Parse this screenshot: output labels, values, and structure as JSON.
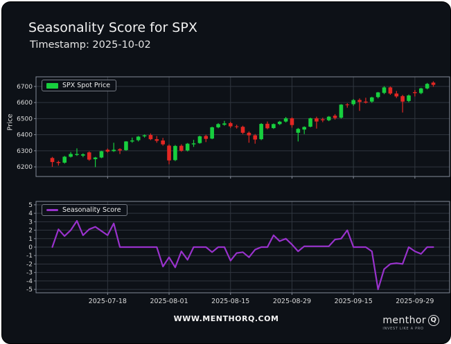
{
  "header": {
    "title": "Seasonality Score for SPX",
    "timestamp": "Timestamp: 2025-10-02"
  },
  "footer": {
    "website": "WWW.MENTHORQ.COM",
    "logo_text": "menthor",
    "logo_q": "Q",
    "logo_tagline": "INVEST LIKE A PRO"
  },
  "colors": {
    "background": "#0d1117",
    "up": "#17cf3e",
    "down": "#e32723",
    "score_line": "#9932cc",
    "grid": "#30363f",
    "spine": "#848b98",
    "tick_text": "#dcdcdc",
    "text": "#f2f2f2"
  },
  "chart_data": [
    {
      "type": "candlestick",
      "legend": "SPX Spot Price",
      "ylabel": "Price",
      "ylim": [
        6140,
        6760
      ],
      "yticks": [
        6200,
        6300,
        6400,
        6500,
        6600,
        6700
      ],
      "xticks": [
        "2025-07-18",
        "2025-08-01",
        "2025-08-15",
        "2025-08-29",
        "2025-09-15",
        "2025-09-29"
      ],
      "xtick_indices": [
        9,
        19,
        29,
        39,
        49,
        59
      ],
      "grid": true,
      "legend_position": "upper-left",
      "dates": [
        "2025-07-07",
        "2025-07-08",
        "2025-07-09",
        "2025-07-10",
        "2025-07-11",
        "2025-07-14",
        "2025-07-15",
        "2025-07-16",
        "2025-07-17",
        "2025-07-18",
        "2025-07-21",
        "2025-07-22",
        "2025-07-23",
        "2025-07-24",
        "2025-07-25",
        "2025-07-28",
        "2025-07-29",
        "2025-07-30",
        "2025-07-31",
        "2025-08-01",
        "2025-08-04",
        "2025-08-05",
        "2025-08-06",
        "2025-08-07",
        "2025-08-08",
        "2025-08-11",
        "2025-08-12",
        "2025-08-13",
        "2025-08-14",
        "2025-08-15",
        "2025-08-18",
        "2025-08-19",
        "2025-08-20",
        "2025-08-21",
        "2025-08-22",
        "2025-08-25",
        "2025-08-26",
        "2025-08-27",
        "2025-08-28",
        "2025-08-29",
        "2025-09-02",
        "2025-09-03",
        "2025-09-04",
        "2025-09-05",
        "2025-09-08",
        "2025-09-09",
        "2025-09-10",
        "2025-09-11",
        "2025-09-12",
        "2025-09-15",
        "2025-09-16",
        "2025-09-17",
        "2025-09-18",
        "2025-09-19",
        "2025-09-22",
        "2025-09-23",
        "2025-09-24",
        "2025-09-25",
        "2025-09-26",
        "2025-09-29",
        "2025-09-30",
        "2025-10-01",
        "2025-10-02"
      ],
      "open": [
        6255,
        6230,
        6226,
        6263,
        6274,
        6270,
        6290,
        6248,
        6258,
        6306,
        6298,
        6310,
        6304,
        6358,
        6366,
        6390,
        6398,
        6372,
        6364,
        6332,
        6242,
        6331,
        6302,
        6340,
        6348,
        6392,
        6376,
        6446,
        6462,
        6472,
        6452,
        6449,
        6412,
        6396,
        6372,
        6468,
        6441,
        6466,
        6482,
        6502,
        6412,
        6432,
        6450,
        6502,
        6496,
        6490,
        6518,
        6506,
        6588,
        6590,
        6616,
        6606,
        6606,
        6634,
        6660,
        6694,
        6656,
        6640,
        6610,
        6665,
        6659,
        6688,
        6724
      ],
      "high": [
        6262,
        6238,
        6268,
        6292,
        6315,
        6284,
        6296,
        6262,
        6300,
        6314,
        6350,
        6316,
        6360,
        6382,
        6392,
        6402,
        6408,
        6392,
        6380,
        6340,
        6336,
        6340,
        6348,
        6368,
        6394,
        6400,
        6450,
        6472,
        6486,
        6480,
        6462,
        6456,
        6420,
        6404,
        6472,
        6482,
        6470,
        6486,
        6510,
        6508,
        6442,
        6452,
        6506,
        6512,
        6506,
        6516,
        6528,
        6590,
        6596,
        6622,
        6626,
        6630,
        6636,
        6666,
        6702,
        6700,
        6672,
        6648,
        6650,
        6678,
        6692,
        6722,
        6732
      ],
      "low": [
        6200,
        6208,
        6220,
        6258,
        6268,
        6260,
        6238,
        6198,
        6254,
        6288,
        6293,
        6280,
        6300,
        6350,
        6358,
        6382,
        6366,
        6350,
        6332,
        6216,
        6236,
        6294,
        6296,
        6324,
        6344,
        6354,
        6372,
        6440,
        6456,
        6442,
        6438,
        6404,
        6350,
        6344,
        6366,
        6434,
        6436,
        6460,
        6476,
        6444,
        6358,
        6404,
        6446,
        6438,
        6478,
        6484,
        6494,
        6500,
        6568,
        6580,
        6548,
        6594,
        6598,
        6626,
        6652,
        6648,
        6628,
        6538,
        6602,
        6638,
        6652,
        6682,
        6698
      ],
      "close": [
        6230,
        6224,
        6263,
        6280,
        6280,
        6278,
        6245,
        6258,
        6297,
        6295,
        6306,
        6302,
        6358,
        6364,
        6388,
        6396,
        6372,
        6362,
        6340,
        6240,
        6330,
        6300,
        6344,
        6346,
        6390,
        6374,
        6446,
        6466,
        6470,
        6452,
        6448,
        6412,
        6396,
        6370,
        6467,
        6440,
        6466,
        6481,
        6502,
        6460,
        6436,
        6448,
        6502,
        6482,
        6490,
        6512,
        6504,
        6587,
        6584,
        6615,
        6604,
        6600,
        6632,
        6663,
        6694,
        6656,
        6638,
        6606,
        6644,
        6659,
        6688,
        6716,
        6710
      ]
    },
    {
      "type": "line",
      "legend": "Seasonality Score",
      "ylim": [
        -5.4,
        5.4
      ],
      "yticks": [
        5,
        4,
        3,
        2,
        1,
        0,
        -1,
        -2,
        -3,
        -4,
        -5
      ],
      "xticks": [
        "2025-07-18",
        "2025-08-01",
        "2025-08-15",
        "2025-08-29",
        "2025-09-15",
        "2025-09-29"
      ],
      "xtick_indices": [
        9,
        19,
        29,
        39,
        49,
        59
      ],
      "grid": true,
      "legend_position": "upper-left",
      "values": [
        0.0,
        2.1,
        1.3,
        2.0,
        3.1,
        1.4,
        2.1,
        2.4,
        1.9,
        1.4,
        2.8,
        0.0,
        0.0,
        0.0,
        0.0,
        0.0,
        0.0,
        0.0,
        -2.3,
        -1.2,
        -2.4,
        -0.5,
        -1.5,
        0.0,
        0.0,
        0.0,
        -0.6,
        0.0,
        0.0,
        -1.6,
        -0.7,
        -0.6,
        -1.2,
        -0.3,
        0.0,
        0.0,
        1.4,
        0.7,
        1.0,
        0.3,
        -0.5,
        0.1,
        0.1,
        0.1,
        0.1,
        0.1,
        0.9,
        1.0,
        2.0,
        0.0,
        0.0,
        0.0,
        -0.5,
        -5.0,
        -2.6,
        -2.0,
        -1.9,
        -2.0,
        0.0,
        -0.5,
        -0.8,
        0.0,
        0.0
      ]
    }
  ]
}
